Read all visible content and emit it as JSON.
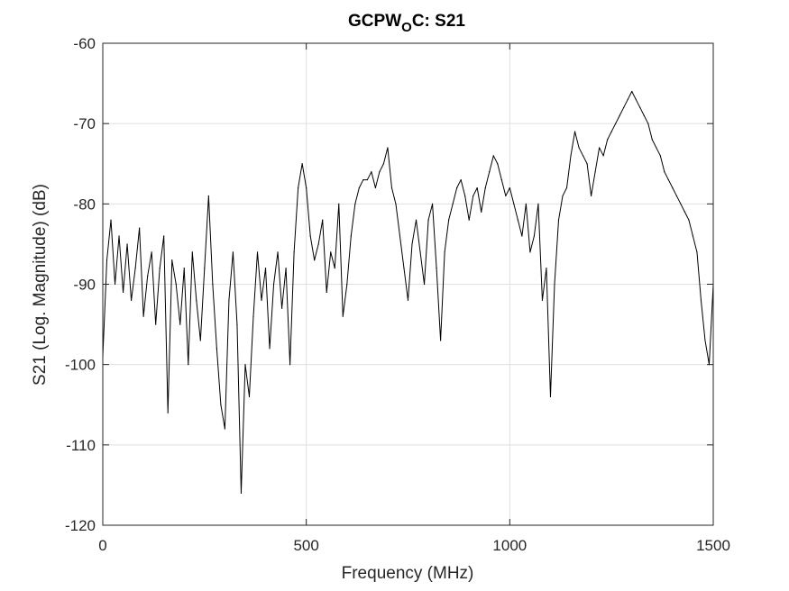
{
  "chart_data": {
    "type": "line",
    "title": {
      "main": "GCPW",
      "sub": "O",
      "rest": "C: S21"
    },
    "xlabel": "Frequency (MHz)",
    "ylabel": "S21 (Log. Magnitude) (dB)",
    "xlim": [
      0,
      1500
    ],
    "ylim": [
      -120,
      -60
    ],
    "grid": true,
    "x_tick_labels": [
      "0",
      "500",
      "1000",
      "1500"
    ],
    "y_tick_labels": [
      "-60",
      "-70",
      "-80",
      "-90",
      "-100",
      "-110",
      "-120"
    ],
    "series": [
      {
        "color": "#000000",
        "x": [
          0,
          10,
          20,
          30,
          40,
          50,
          60,
          70,
          80,
          90,
          100,
          110,
          120,
          130,
          140,
          150,
          160,
          170,
          180,
          190,
          200,
          210,
          220,
          230,
          240,
          250,
          260,
          270,
          280,
          290,
          300,
          310,
          320,
          330,
          340,
          350,
          360,
          370,
          380,
          390,
          400,
          410,
          420,
          430,
          440,
          450,
          460,
          470,
          480,
          490,
          500,
          510,
          520,
          530,
          540,
          550,
          560,
          570,
          580,
          590,
          600,
          610,
          620,
          630,
          640,
          650,
          660,
          670,
          680,
          690,
          700,
          710,
          720,
          730,
          740,
          750,
          760,
          770,
          780,
          790,
          800,
          810,
          820,
          830,
          840,
          850,
          860,
          870,
          880,
          890,
          900,
          910,
          920,
          930,
          940,
          950,
          960,
          970,
          980,
          990,
          1000,
          1010,
          1020,
          1030,
          1040,
          1050,
          1060,
          1070,
          1080,
          1090,
          1100,
          1110,
          1120,
          1130,
          1140,
          1150,
          1160,
          1170,
          1180,
          1190,
          1200,
          1210,
          1220,
          1230,
          1240,
          1250,
          1260,
          1270,
          1280,
          1290,
          1300,
          1310,
          1320,
          1330,
          1340,
          1350,
          1360,
          1370,
          1380,
          1390,
          1400,
          1410,
          1420,
          1430,
          1440,
          1450,
          1460,
          1470,
          1480,
          1490,
          1500
        ],
        "y": [
          -99,
          -87,
          -82,
          -90,
          -84,
          -91,
          -85,
          -92,
          -88,
          -83,
          -94,
          -89,
          -86,
          -95,
          -88,
          -84,
          -106,
          -87,
          -90,
          -95,
          -88,
          -100,
          -86,
          -92,
          -97,
          -88,
          -79,
          -90,
          -98,
          -105,
          -108,
          -92,
          -86,
          -95,
          -116,
          -100,
          -104,
          -94,
          -86,
          -92,
          -88,
          -98,
          -90,
          -86,
          -93,
          -88,
          -100,
          -86,
          -78,
          -75,
          -78,
          -84,
          -87,
          -85,
          -82,
          -91,
          -86,
          -88,
          -80,
          -94,
          -90,
          -84,
          -80,
          -78,
          -77,
          -77,
          -76,
          -78,
          -76,
          -75,
          -73,
          -78,
          -80,
          -84,
          -88,
          -92,
          -85,
          -82,
          -86,
          -90,
          -82,
          -80,
          -88,
          -97,
          -86,
          -82,
          -80,
          -78,
          -77,
          -79,
          -82,
          -79,
          -78,
          -81,
          -78,
          -76,
          -74,
          -75,
          -77,
          -79,
          -78,
          -80,
          -82,
          -84,
          -80,
          -86,
          -84,
          -80,
          -92,
          -88,
          -104,
          -90,
          -82,
          -79,
          -78,
          -74,
          -71,
          -73,
          -74,
          -75,
          -79,
          -76,
          -73,
          -74,
          -72,
          -71,
          -70,
          -69,
          -68,
          -67,
          -66,
          -67,
          -68,
          -69,
          -70,
          -72,
          -73,
          -74,
          -76,
          -77,
          -78,
          -79,
          -80,
          -81,
          -82,
          -84,
          -86,
          -92,
          -97,
          -100,
          -90
        ]
      }
    ]
  }
}
